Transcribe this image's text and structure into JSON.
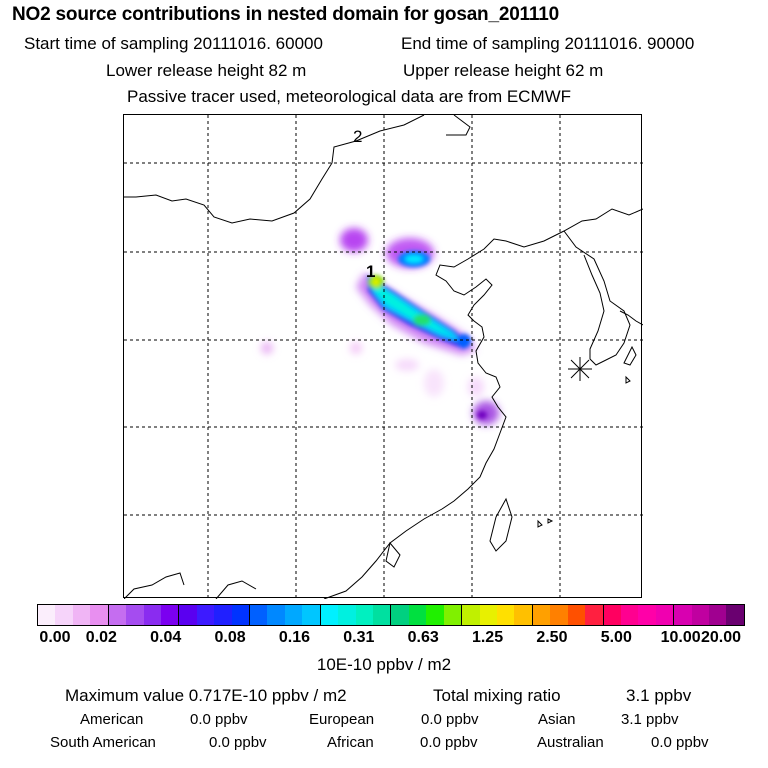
{
  "header": {
    "title": "NO2 source contributions in nested domain for gosan_201110",
    "start_time": "Start time of sampling 20111016. 60000",
    "end_time": "End time of sampling 20111016. 90000",
    "lower_height": "Lower release height   82 m",
    "upper_height": "Upper release height   62 m",
    "tracer_note": "Passive tracer used, meteorological data are from ECMWF"
  },
  "map": {
    "label_1": "1",
    "label_2": "2",
    "receptor_marker": "receptor-star-icon"
  },
  "colorbar": {
    "colors": [
      "#fbeefc",
      "#f6d4fa",
      "#f0b5f5",
      "#e88ff0",
      "#c56df0",
      "#a54cf0",
      "#8a2cf0",
      "#7b00f0",
      "#5a00f0",
      "#3d1aff",
      "#2020ff",
      "#0033ff",
      "#0060ff",
      "#0088ff",
      "#00a8ff",
      "#00c6ff",
      "#00f0ff",
      "#00f0e0",
      "#00f0c0",
      "#00e0a0",
      "#00d080",
      "#00e040",
      "#20f000",
      "#80f000",
      "#c0f000",
      "#e8f000",
      "#ffe000",
      "#ffc000",
      "#ffa000",
      "#ff8000",
      "#ff5000",
      "#ff2040",
      "#ff0060",
      "#ff0090",
      "#ff00a8",
      "#f000b0",
      "#d800b0",
      "#c000a0",
      "#a00090",
      "#6a0070"
    ],
    "ticks": [
      "0.00",
      "0.02",
      "0.04",
      "0.08",
      "0.16",
      "0.31",
      "0.63",
      "1.25",
      "2.50",
      "5.00",
      "10.00",
      "20.00"
    ],
    "units": "10E-10 ppbv / m2"
  },
  "stats": {
    "max_value": "Maximum value  0.717E-10 ppbv / m2",
    "total_mixing": "Total mixing ratio",
    "total_value": "3.1 ppbv"
  },
  "regions": [
    {
      "name": "American",
      "value": "0.0 ppbv"
    },
    {
      "name": "European",
      "value": "0.0 ppbv"
    },
    {
      "name": "Asian",
      "value": "3.1 ppbv"
    },
    {
      "name": "South American",
      "value": "0.0 ppbv"
    },
    {
      "name": "African",
      "value": "0.0 ppbv"
    },
    {
      "name": "Australian",
      "value": "0.0 ppbv"
    }
  ]
}
